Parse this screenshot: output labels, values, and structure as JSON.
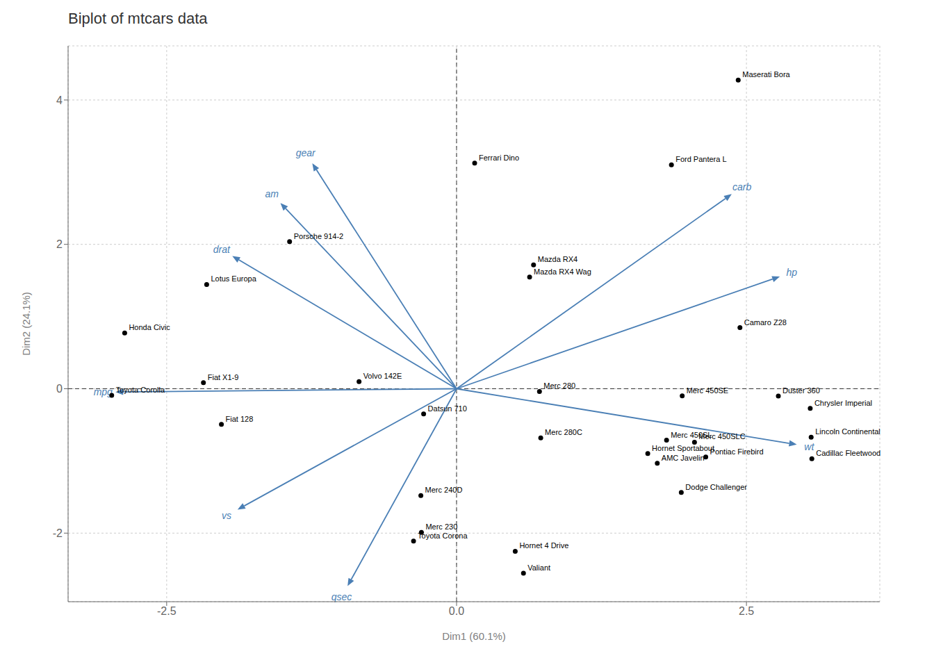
{
  "chart_data": {
    "type": "scatter",
    "title": "Biplot of mtcars data",
    "xlabel": "Dim1 (60.1%)",
    "ylabel": "Dim2 (24.1%)",
    "xlim": [
      -3.35,
      3.65
    ],
    "ylim": [
      -2.95,
      4.75
    ],
    "xticks": [
      -2.5,
      {
        "value": 0,
        "label": "0.0"
      },
      2.5
    ],
    "yticks": [
      -2,
      0,
      2,
      4
    ],
    "grid": true,
    "reference_lines": {
      "x": [
        0
      ],
      "y": [
        0
      ]
    },
    "series": [
      {
        "type": "scatter",
        "color": "#000000",
        "marker": "circle",
        "point_labels": [
          "Mazda RX4",
          "Mazda RX4 Wag",
          "Datsun 710",
          "Hornet 4 Drive",
          "Hornet Sportabout",
          "Valiant",
          "Duster 360",
          "Merc 240D",
          "Merc 230",
          "Merc 280",
          "Merc 280C",
          "Merc 450SE",
          "Merc 450SL",
          "Merc 450SLC",
          "Cadillac Fleetwood",
          "Lincoln Continental",
          "Chrysler Imperial",
          "Fiat 128",
          "Honda Civic",
          "Toyota Corolla",
          "Toyota Corona",
          "Dodge Challenger",
          "AMC Javelin",
          "Camaro Z28",
          "Pontiac Firebird",
          "Fiat X1-9",
          "Porsche 914-2",
          "Lotus Europa",
          "Ford Pantera L",
          "Ferrari Dino",
          "Maserati Bora",
          "Volvo 142E"
        ],
        "x": [
          0.664,
          0.63,
          -0.284,
          0.506,
          1.649,
          0.577,
          2.775,
          -0.308,
          -0.303,
          0.715,
          0.726,
          1.946,
          1.811,
          2.052,
          3.064,
          3.058,
          3.05,
          -2.028,
          -2.862,
          -2.974,
          -0.371,
          1.938,
          1.731,
          2.444,
          2.149,
          -2.183,
          -1.44,
          -2.155,
          1.853,
          0.156,
          2.429,
          -0.841
        ],
        "values": [
          1.715,
          1.547,
          -0.349,
          -2.251,
          -0.897,
          -2.555,
          -0.1,
          -1.48,
          -1.99,
          -0.038,
          -0.681,
          -0.099,
          -0.713,
          -0.74,
          -0.97,
          -0.671,
          -0.272,
          -0.494,
          0.773,
          -0.091,
          -2.11,
          -1.437,
          -1.032,
          0.846,
          -0.945,
          0.084,
          2.037,
          1.445,
          3.102,
          3.126,
          4.277,
          0.098
        ]
      },
      {
        "type": "arrow",
        "color": "#4a7fb5",
        "origin": [
          0,
          0
        ],
        "point_labels": [
          "mpg",
          "hp",
          "drat",
          "wt",
          "qsec",
          "vs",
          "am",
          "gear",
          "carb"
        ],
        "x": [
          -2.941,
          2.788,
          -1.934,
          2.934,
          -0.94,
          -1.889,
          -1.519,
          -1.244,
          2.373
        ],
        "values": [
          -0.045,
          1.554,
          1.839,
          -0.773,
          -2.734,
          -1.674,
          2.573,
          3.123,
          2.697
        ]
      }
    ]
  }
}
